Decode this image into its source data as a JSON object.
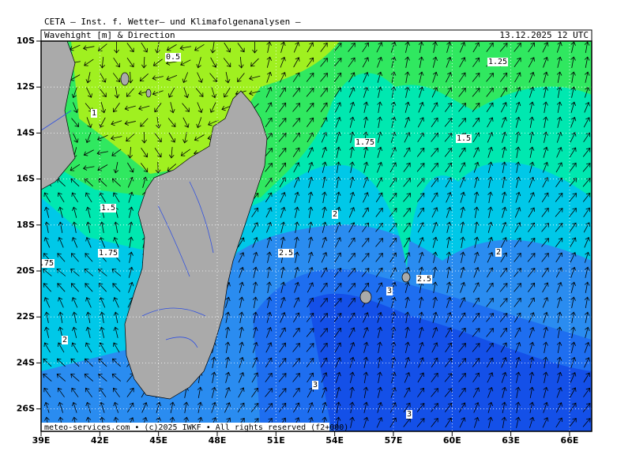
{
  "header": {
    "title": "CETA — Inst. f. Wetter— und Klimafolgenanalysen —",
    "product": "Wavehight [m] & Direction",
    "valid_time": "13.12.2025 12 UTC"
  },
  "map": {
    "latitude_labels": [
      "10S",
      "12S",
      "14S",
      "16S",
      "18S",
      "20S",
      "22S",
      "24S",
      "26S"
    ],
    "longitude_labels": [
      "39E",
      "42E",
      "45E",
      "48E",
      "51E",
      "54E",
      "57E",
      "60E",
      "63E",
      "66E"
    ],
    "contour_labels": [
      "0.5",
      "1.25",
      "1",
      "1.75",
      "1.5",
      "1.5",
      "2",
      "1.75",
      "2.5",
      "2",
      ".75",
      "2.5",
      "3",
      "2",
      "3",
      "3"
    ],
    "footer": "meteo-services.com • (c)2025 IWKF • All rights reserved (f2+000)"
  }
}
